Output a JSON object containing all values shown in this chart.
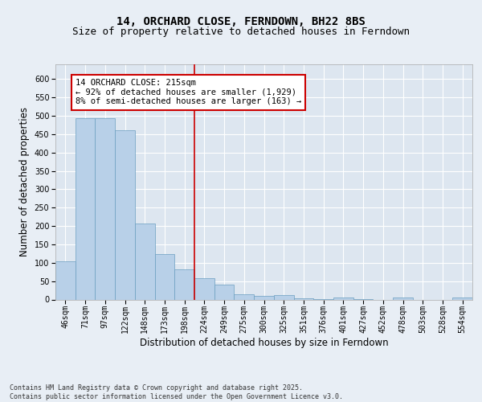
{
  "title": "14, ORCHARD CLOSE, FERNDOWN, BH22 8BS",
  "subtitle": "Size of property relative to detached houses in Ferndown",
  "xlabel": "Distribution of detached houses by size in Ferndown",
  "ylabel": "Number of detached properties",
  "categories": [
    "46sqm",
    "71sqm",
    "97sqm",
    "122sqm",
    "148sqm",
    "173sqm",
    "198sqm",
    "224sqm",
    "249sqm",
    "275sqm",
    "300sqm",
    "325sqm",
    "351sqm",
    "376sqm",
    "401sqm",
    "427sqm",
    "452sqm",
    "478sqm",
    "503sqm",
    "528sqm",
    "554sqm"
  ],
  "values": [
    105,
    493,
    493,
    460,
    207,
    123,
    83,
    57,
    40,
    14,
    9,
    11,
    3,
    1,
    5,
    1,
    0,
    5,
    0,
    0,
    5
  ],
  "bar_color": "#b8d0e8",
  "bar_edge_color": "#6a9ec0",
  "vline_color": "#cc0000",
  "vline_index": 7,
  "annotation_text": "14 ORCHARD CLOSE: 215sqm\n← 92% of detached houses are smaller (1,929)\n8% of semi-detached houses are larger (163) →",
  "annotation_box_color": "#cc0000",
  "ylim": [
    0,
    640
  ],
  "yticks": [
    0,
    50,
    100,
    150,
    200,
    250,
    300,
    350,
    400,
    450,
    500,
    550,
    600
  ],
  "background_color": "#dde6f0",
  "grid_color": "#ffffff",
  "fig_background": "#e8eef5",
  "footer_text": "Contains HM Land Registry data © Crown copyright and database right 2025.\nContains public sector information licensed under the Open Government Licence v3.0.",
  "title_fontsize": 10,
  "subtitle_fontsize": 9,
  "tick_fontsize": 7,
  "label_fontsize": 8.5,
  "annotation_fontsize": 7.5
}
